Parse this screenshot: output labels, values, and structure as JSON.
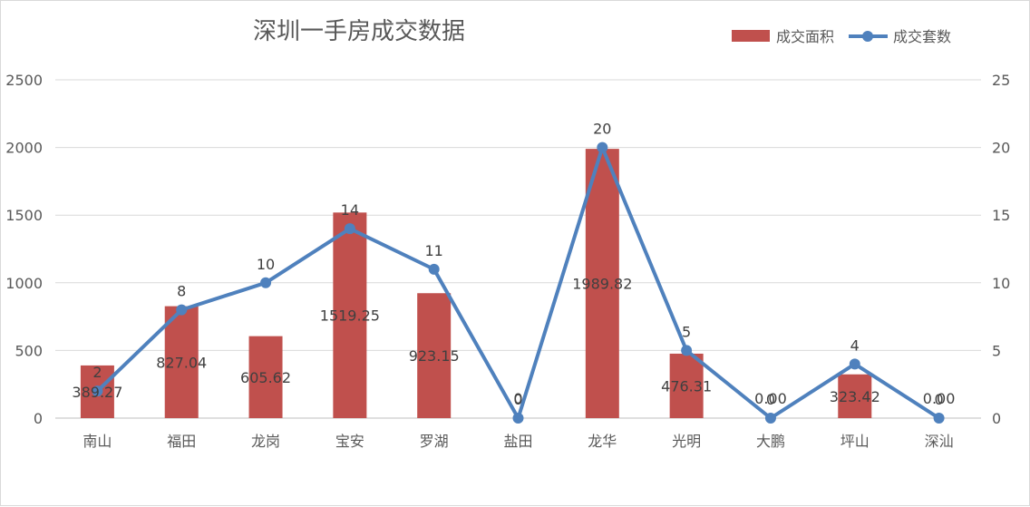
{
  "chart_data": {
    "type": "bar+line",
    "title": "深圳一手房成交数据",
    "categories": [
      "南山",
      "福田",
      "龙岗",
      "宝安",
      "罗湖",
      "盐田",
      "龙华",
      "光明",
      "大鹏",
      "坪山",
      "深汕"
    ],
    "series": [
      {
        "name": "成交面积",
        "type": "bar",
        "axis": "left",
        "color": "#c0504d",
        "values": [
          389.27,
          827.04,
          605.62,
          1519.25,
          923.15,
          0,
          1989.82,
          476.31,
          0,
          323.42,
          0
        ],
        "labels": [
          "389.27",
          "827.04",
          "605.62",
          "1519.25",
          "923.15",
          "0",
          "1989.82",
          "476.31",
          "0.00",
          "323.42",
          "0.00"
        ]
      },
      {
        "name": "成交套数",
        "type": "line",
        "axis": "right",
        "color": "#4f81bd",
        "values": [
          2,
          8,
          10,
          14,
          11,
          0,
          20,
          5,
          0,
          4,
          0
        ],
        "labels": [
          "2",
          "8",
          "10",
          "14",
          "11",
          "0",
          "20",
          "5",
          "0",
          "4",
          "0"
        ]
      }
    ],
    "y_left": {
      "min": 0,
      "max": 2500,
      "ticks": [
        "0",
        "500",
        "1000",
        "1500",
        "2000",
        "2500"
      ]
    },
    "y_right": {
      "min": 0,
      "max": 25,
      "ticks": [
        "0",
        "5",
        "10",
        "15",
        "20",
        "25"
      ]
    },
    "grid": true,
    "legend_position": "top-right"
  }
}
